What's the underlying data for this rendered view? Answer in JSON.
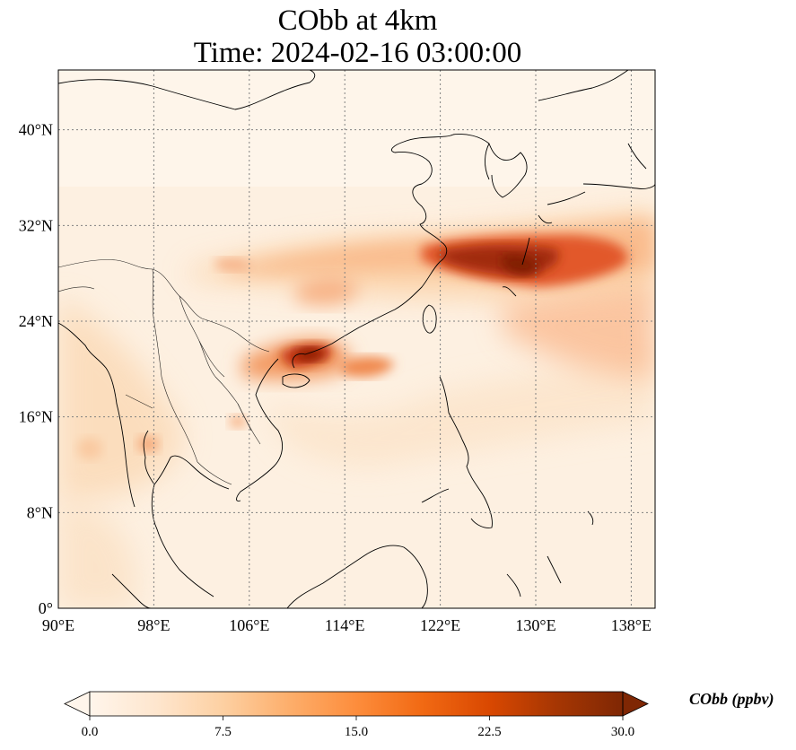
{
  "title": {
    "line1": "CObb at 4km",
    "line2": "Time: 2024-02-16 03:00:00"
  },
  "map": {
    "variable": "CObb",
    "units": "ppbv",
    "lon_range": [
      90,
      140
    ],
    "lat_range": [
      0,
      45
    ],
    "x_ticks": [
      "90°E",
      "98°E",
      "106°E",
      "114°E",
      "122°E",
      "130°E",
      "138°E"
    ],
    "y_ticks": [
      "0°",
      "8°N",
      "16°N",
      "24°N",
      "32°N",
      "40°N"
    ],
    "gridlines": true,
    "plume_description_colors": {
      "low": "#fff5eb",
      "mid": "#fdae6b",
      "high": "#d94801",
      "max": "#7f2704"
    }
  },
  "colorbar": {
    "ticks": [
      "0.0",
      "7.5",
      "15.0",
      "22.5",
      "30.0"
    ],
    "range": [
      0,
      30
    ],
    "extend": "both",
    "label": "CObb (ppbv)",
    "colors": [
      "#fff5eb",
      "#fee6ce",
      "#fdd0a2",
      "#fdae6b",
      "#fd8d3c",
      "#f16913",
      "#d94801",
      "#a63603",
      "#7f2704"
    ]
  }
}
